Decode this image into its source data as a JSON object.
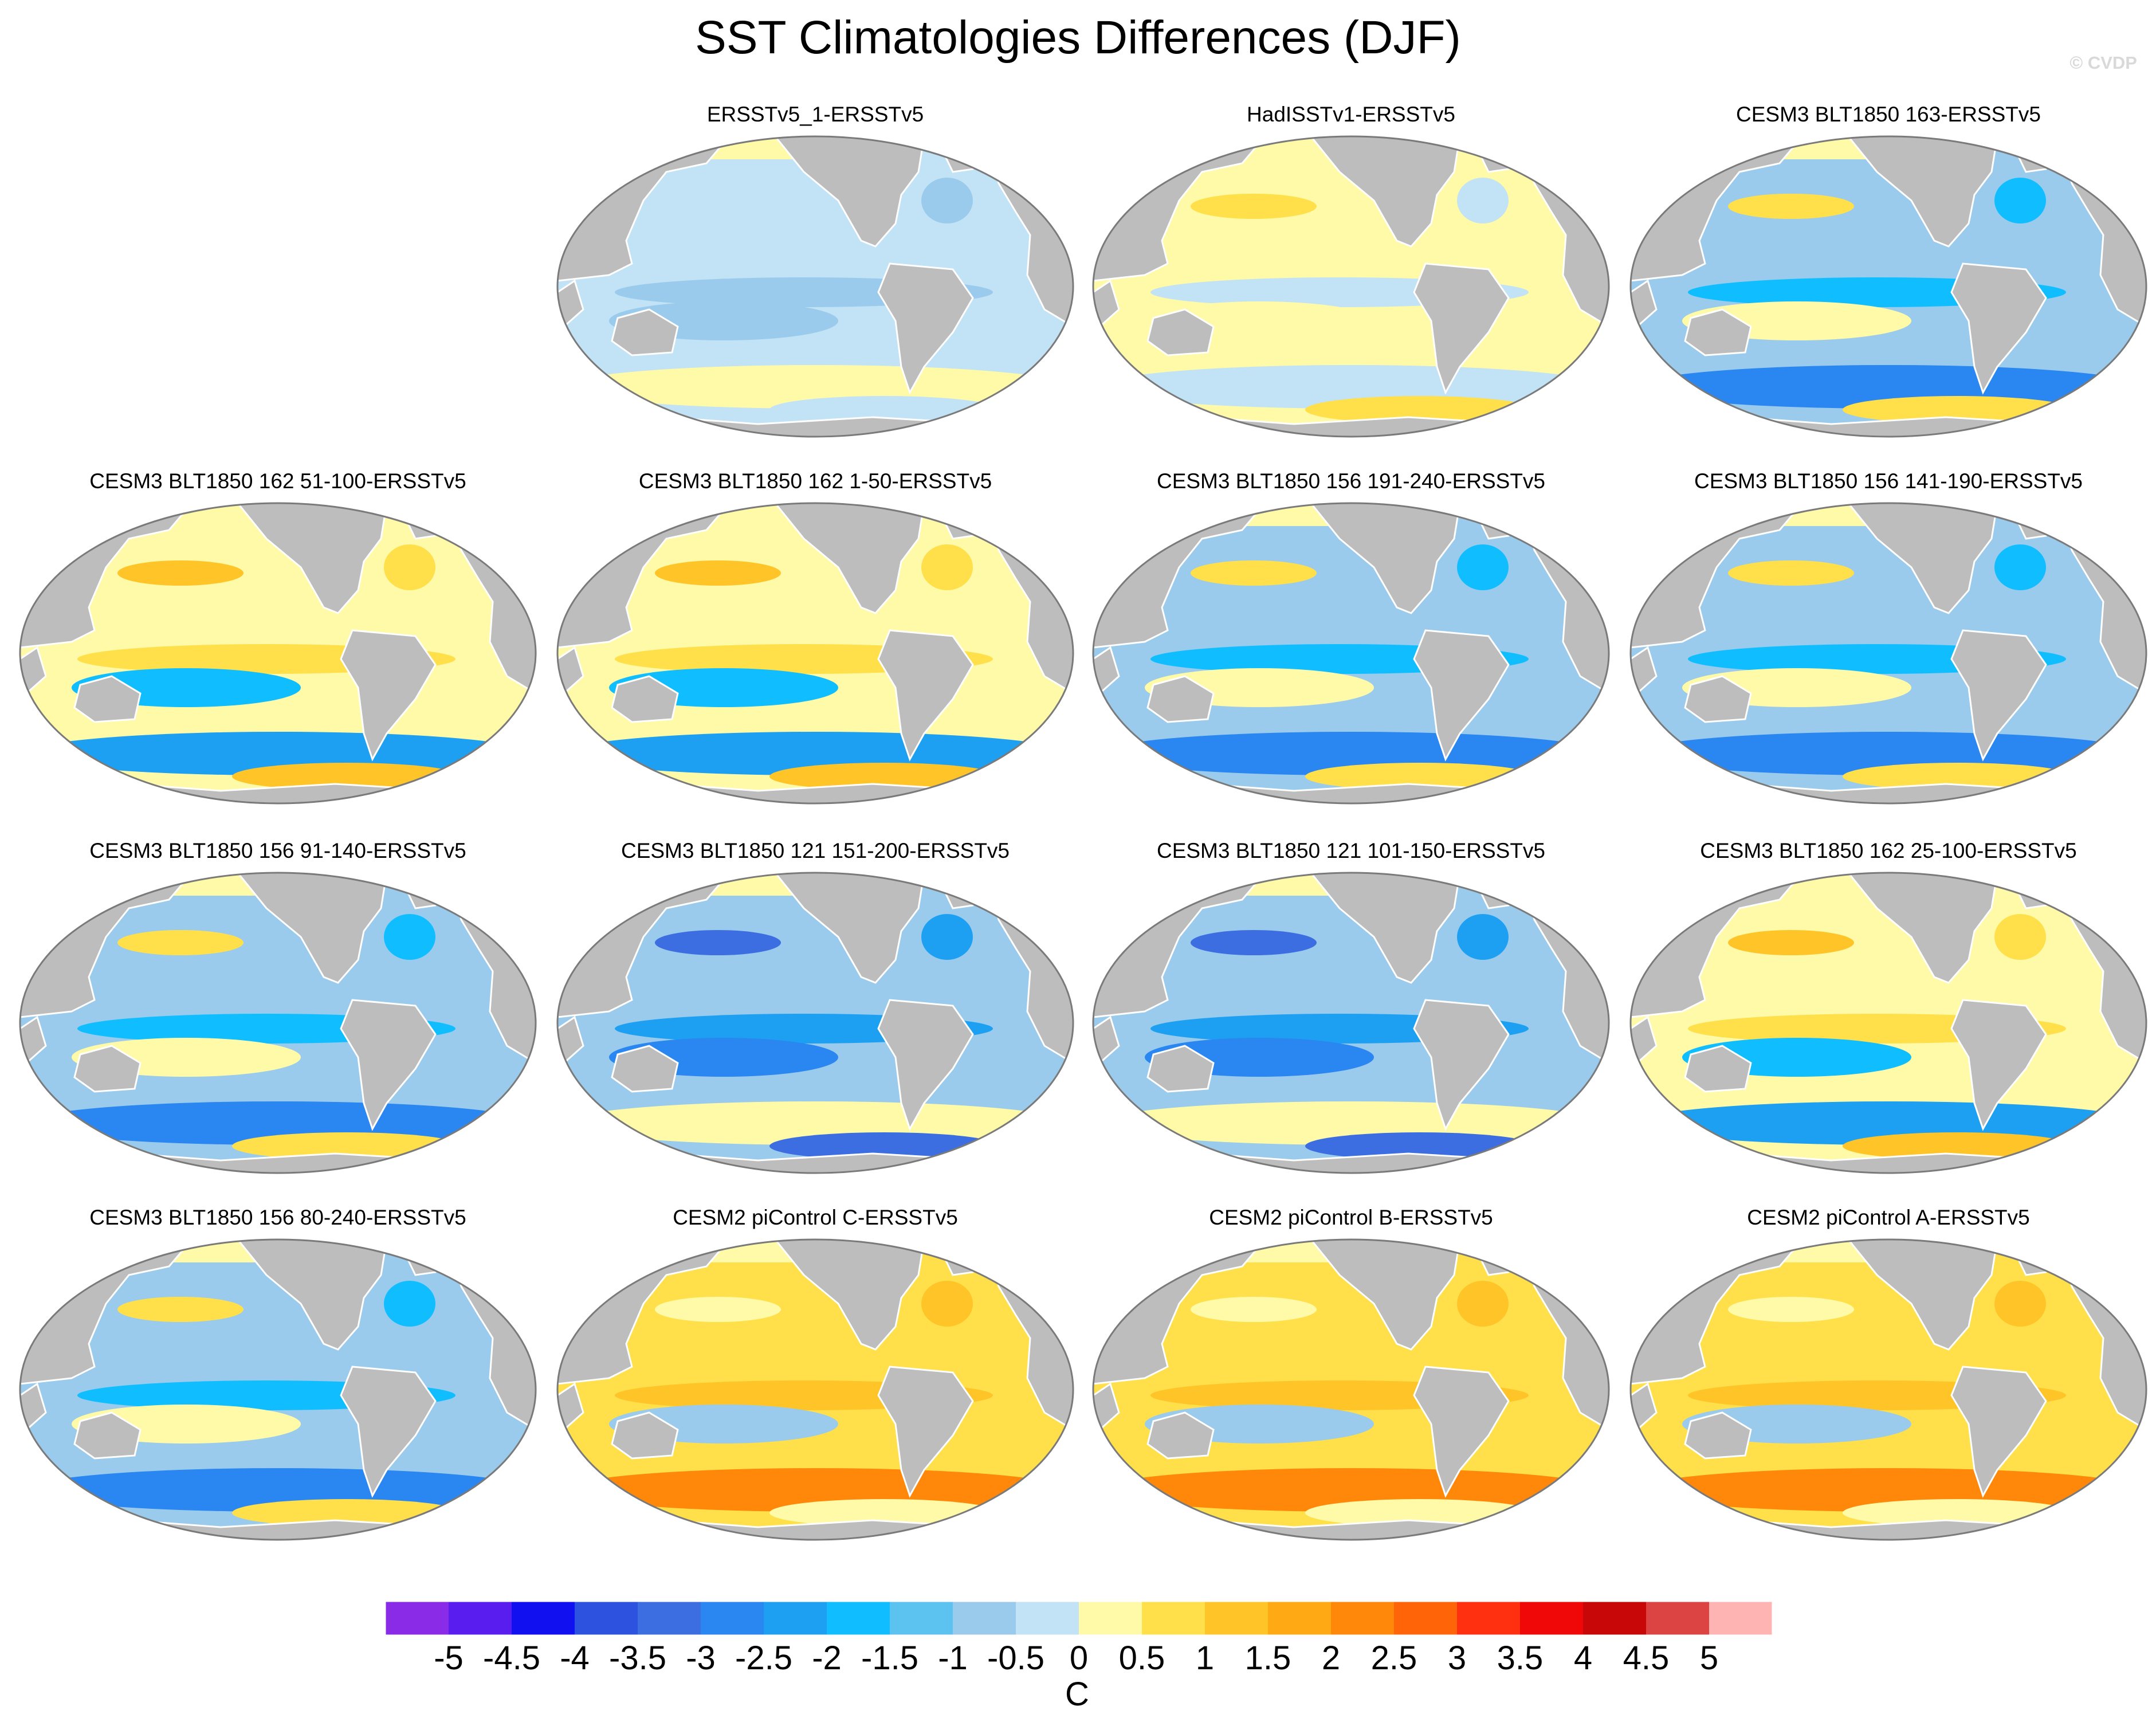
{
  "title": "SST Climatologies Differences (DJF)",
  "watermark": "© CVDP",
  "colors": {
    "land": "#bdbdbd",
    "ocean_fill_default": "#c2e2f5",
    "coast": "#ffffff",
    "outline": "#7a7a7a"
  },
  "panels": [
    {
      "title": "ERSSTv5_1-ERSSTv5",
      "pattern": "uniform-cool"
    },
    {
      "title": "HadISSTv1-ERSSTv5",
      "pattern": "uniform-warm"
    },
    {
      "title": "CESM3 BLT1850 163-ERSSTv5",
      "pattern": "cool-bias"
    },
    {
      "title": "CESM3 BLT1850 162 51-100-ERSSTv5",
      "pattern": "warm-tropics"
    },
    {
      "title": "CESM3 BLT1850 162 1-50-ERSSTv5",
      "pattern": "warm-tropics"
    },
    {
      "title": "CESM3 BLT1850 156 191-240-ERSSTv5",
      "pattern": "cool-bias"
    },
    {
      "title": "CESM3 BLT1850 156 141-190-ERSSTv5",
      "pattern": "cool-bias"
    },
    {
      "title": "CESM3 BLT1850 156 91-140-ERSSTv5",
      "pattern": "cool-bias"
    },
    {
      "title": "CESM3 BLT1850 121 151-200-ERSSTv5",
      "pattern": "strong-cool"
    },
    {
      "title": "CESM3 BLT1850 121 101-150-ERSSTv5",
      "pattern": "strong-cool"
    },
    {
      "title": "CESM3 BLT1850 162 25-100-ERSSTv5",
      "pattern": "warm-tropics"
    },
    {
      "title": "CESM3 BLT1850 156 80-240-ERSSTv5",
      "pattern": "cool-bias"
    },
    {
      "title": "CESM2 piControl C-ERSSTv5",
      "pattern": "warm-bias"
    },
    {
      "title": "CESM2 piControl B-ERSSTv5",
      "pattern": "warm-bias"
    },
    {
      "title": "CESM2 piControl A-ERSSTv5",
      "pattern": "warm-bias"
    }
  ],
  "colorbar": {
    "unit": "C",
    "labels": [
      "-5",
      "-4.5",
      "-4",
      "-3.5",
      "-3",
      "-2.5",
      "-2",
      "-1.5",
      "-1",
      "-0.5",
      "0",
      "0.5",
      "1",
      "1.5",
      "2",
      "2.5",
      "3",
      "3.5",
      "4",
      "4.5",
      "5"
    ],
    "colors": [
      "#8a2be8",
      "#5a1df0",
      "#1010f0",
      "#2e52e0",
      "#3c6ee2",
      "#2a86f0",
      "#1ea0f2",
      "#10beff",
      "#5cc2f0",
      "#9acbec",
      "#c2e2f5",
      "#fffaa8",
      "#ffe04a",
      "#ffc428",
      "#ffaa14",
      "#ff880a",
      "#ff6408",
      "#ff3010",
      "#f00808",
      "#c80808",
      "#dc4444",
      "#ffb4b4"
    ]
  }
}
